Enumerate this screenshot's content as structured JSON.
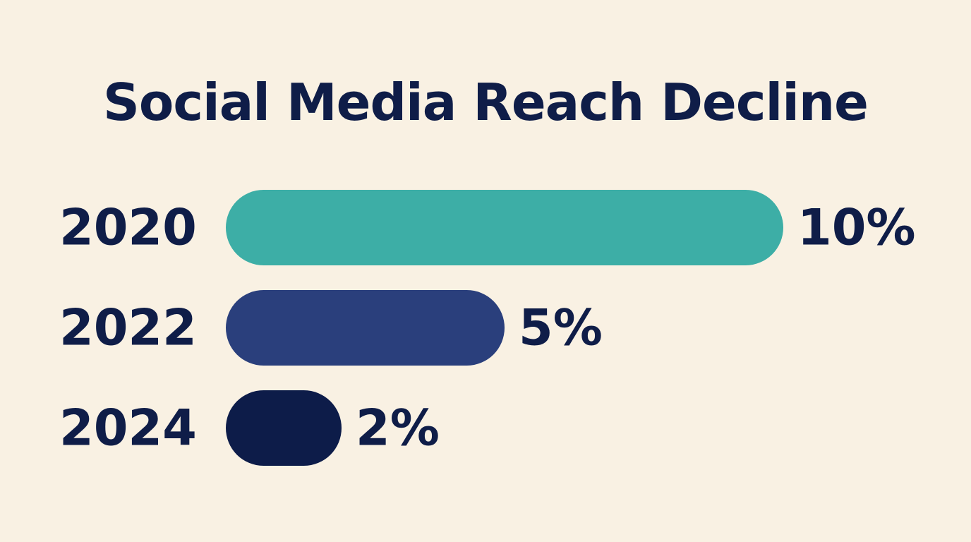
{
  "chart_data": {
    "type": "bar",
    "orientation": "horizontal",
    "title": "Social Media Reach Decline",
    "categories": [
      "2020",
      "2022",
      "2024"
    ],
    "values": [
      10,
      5,
      2
    ],
    "value_labels": [
      "10%",
      "5%",
      "2%"
    ],
    "unit": "%",
    "xlim": [
      0,
      10
    ],
    "grid": false,
    "legend": "none",
    "bar_colors": [
      "#3daea6",
      "#2a3f7c",
      "#0d1c49"
    ]
  }
}
